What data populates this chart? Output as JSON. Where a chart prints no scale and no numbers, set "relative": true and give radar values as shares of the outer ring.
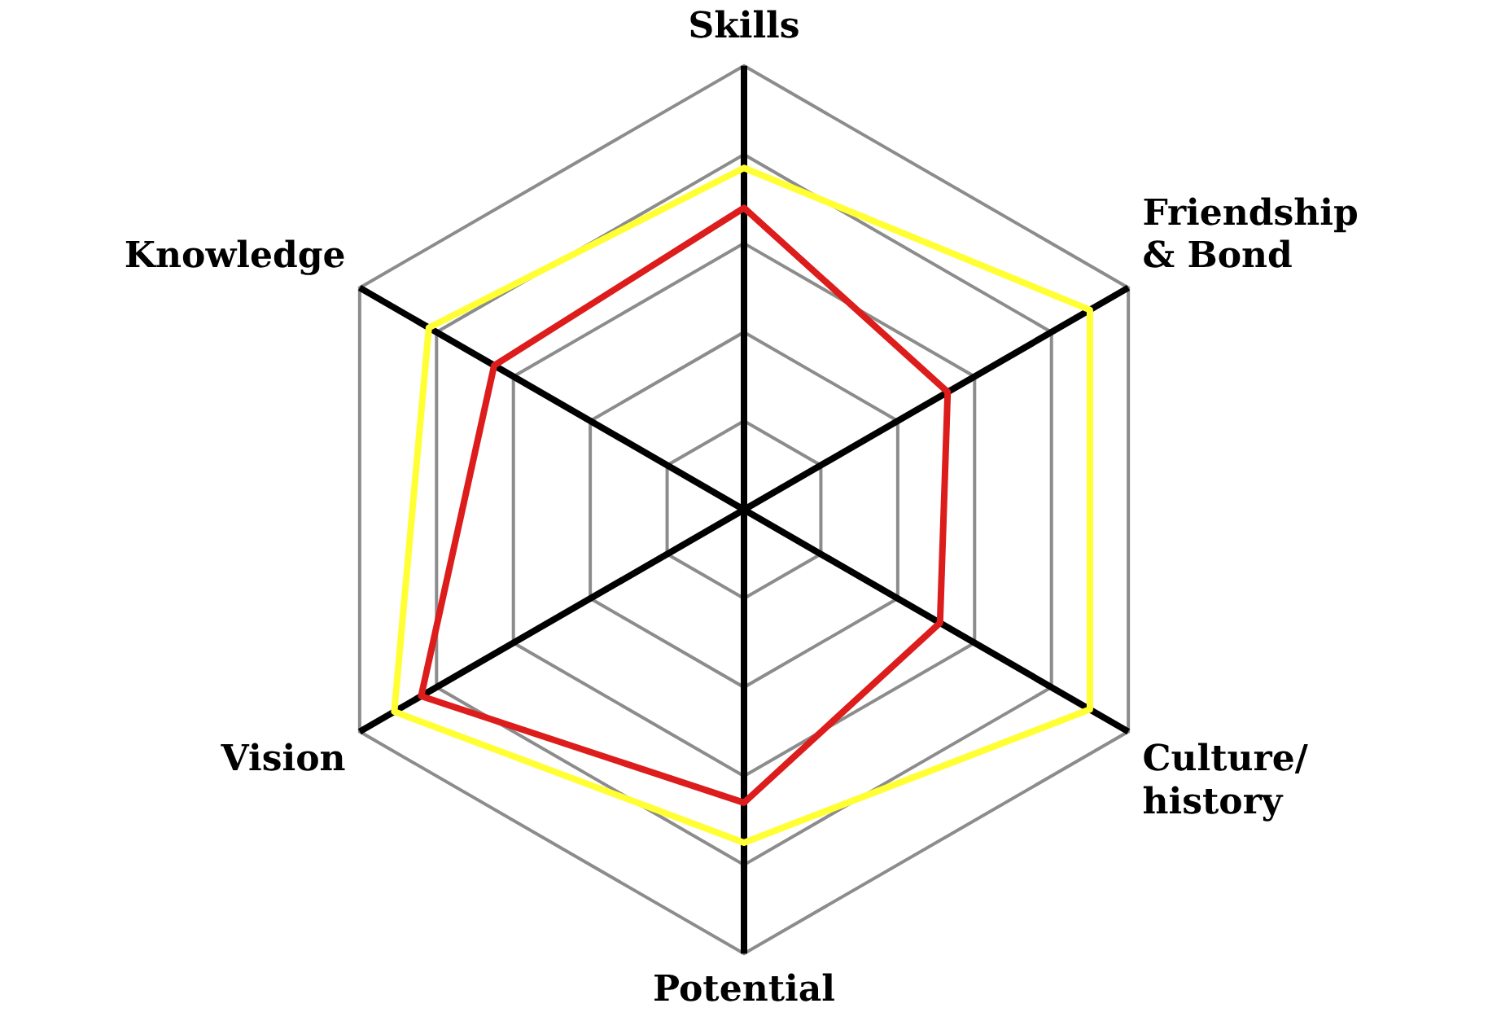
{
  "chart_data": {
    "type": "radar",
    "relative": true,
    "categories": [
      "Skills",
      "Friendship\n& Bond",
      "Culture/\nhistory",
      "Potential",
      "Vision",
      "Knowledge"
    ],
    "series": [
      {
        "color": "#ffff33",
        "values": [
          0.77,
          0.9,
          0.9,
          0.75,
          0.91,
          0.82
        ]
      },
      {
        "color": "#dd1c1c",
        "values": [
          0.68,
          0.53,
          0.51,
          0.66,
          0.84,
          0.65
        ]
      }
    ],
    "grid": true,
    "legend": false,
    "marker": "none",
    "line_style": "solid"
  }
}
